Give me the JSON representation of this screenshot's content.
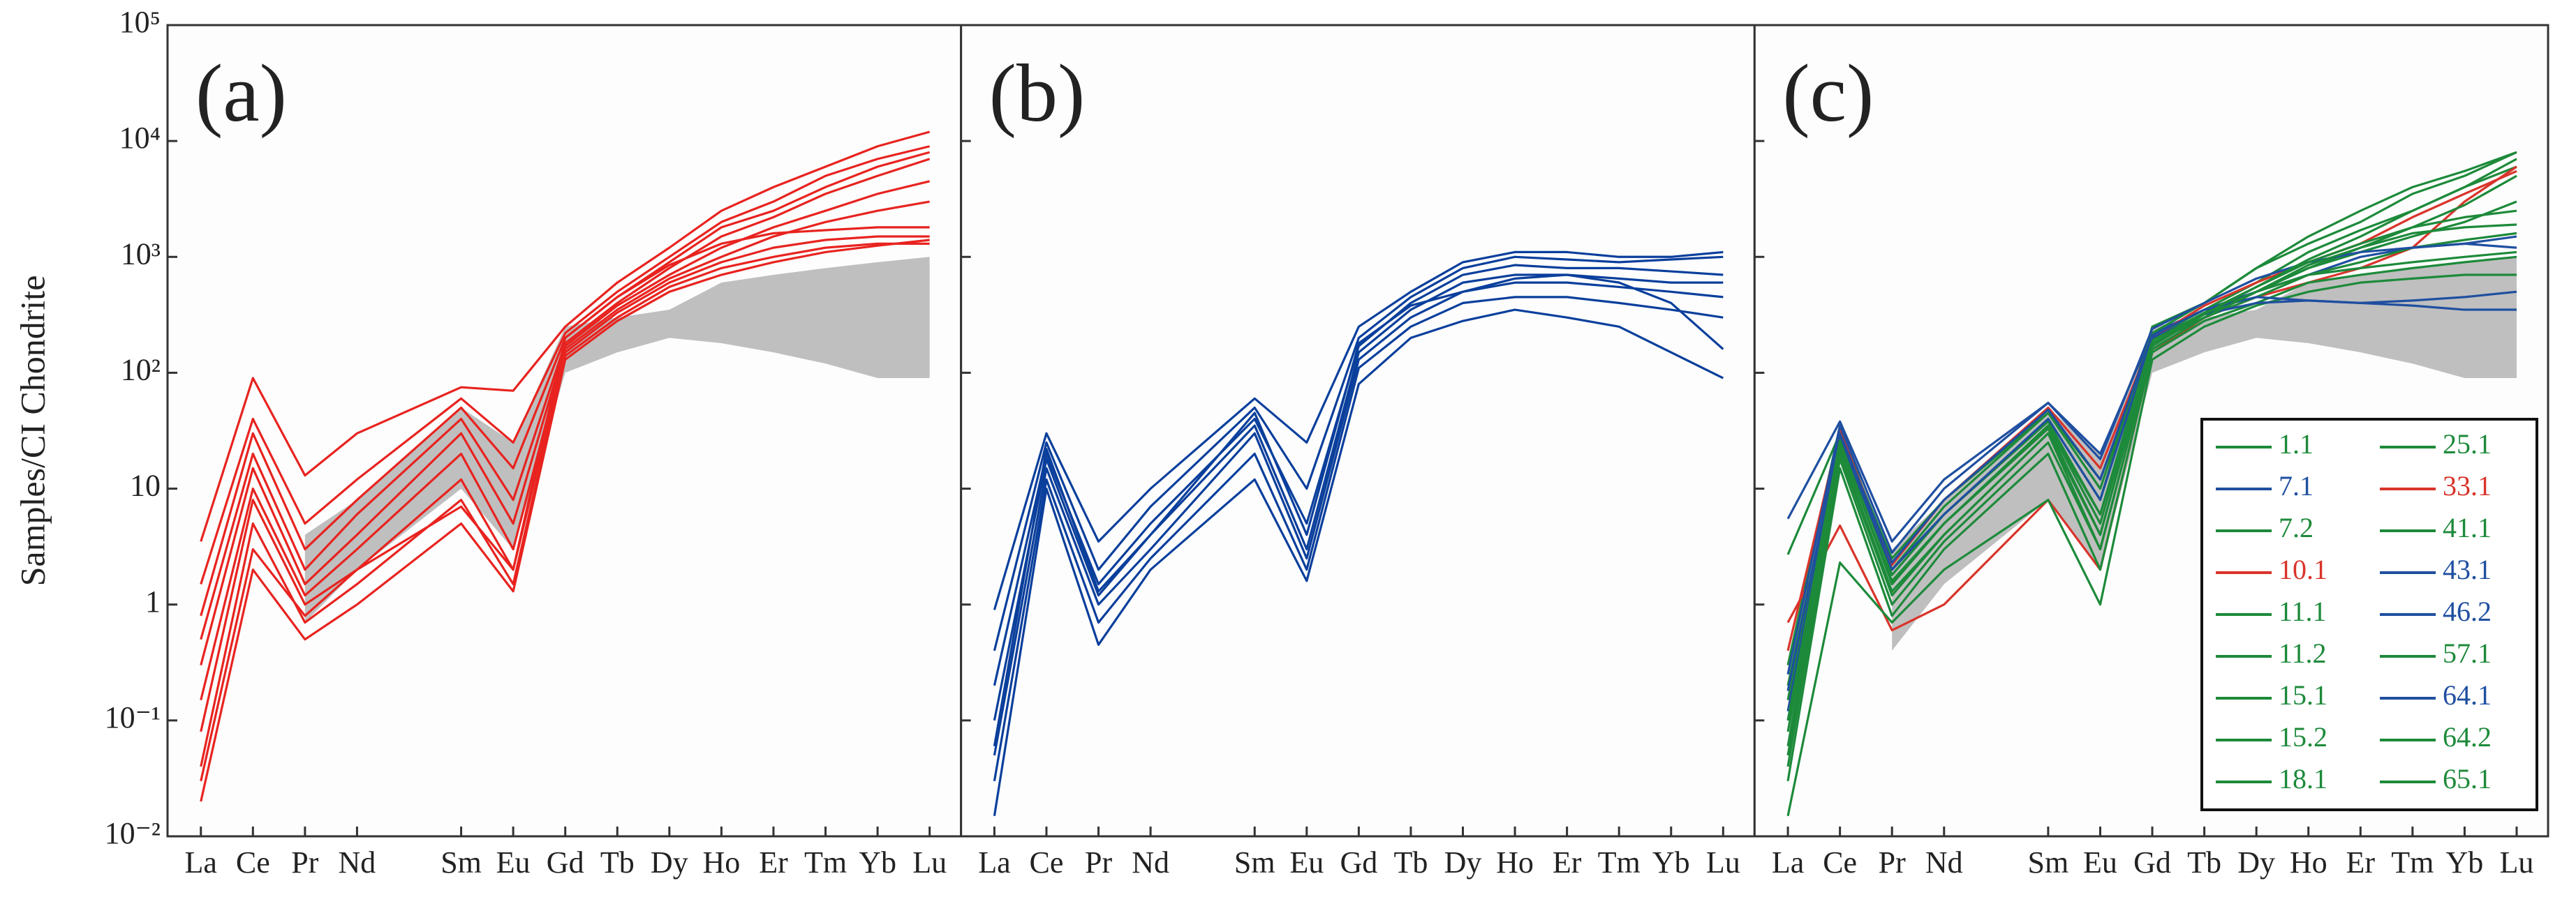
{
  "chart_data": [
    {
      "type": "line",
      "title": "(a)",
      "ylabel": "Samples/CI Chondrite",
      "log_y": true,
      "categories": [
        "La",
        "Ce",
        "Pr",
        "Nd",
        "Sm",
        "Eu",
        "Gd",
        "Tb",
        "Dy",
        "Ho",
        "Er",
        "Tm",
        "Yb",
        "Lu"
      ],
      "ylim": [
        0.01,
        100000
      ],
      "yticks": [
        {
          "value": 0.01,
          "label": "10⁻²"
        },
        {
          "value": 0.1,
          "label": "10⁻¹"
        },
        1,
        10,
        {
          "value": 100,
          "label": "10²"
        },
        {
          "value": 1000,
          "label": "10³"
        },
        {
          "value": 10000,
          "label": "10⁴"
        },
        {
          "value": 100000,
          "label": "10⁵"
        }
      ],
      "field": {
        "color": "#bfbfbf",
        "lower": [
          null,
          null,
          0.7,
          2,
          10,
          3,
          100,
          150,
          200,
          180,
          150,
          120,
          90,
          90
        ],
        "upper": [
          null,
          null,
          4,
          8,
          50,
          25,
          250,
          300,
          350,
          600,
          700,
          800,
          900,
          1000
        ]
      },
      "series": [
        {
          "color": "#e8231f",
          "values": [
            3.5,
            90,
            13,
            30,
            75,
            70,
            250,
            600,
            1200,
            2500,
            4000,
            6000,
            9000,
            12000
          ]
        },
        {
          "color": "#e8231f",
          "values": [
            1.5,
            40,
            5,
            12,
            60,
            25,
            220,
            500,
            1000,
            2000,
            3000,
            5000,
            7000,
            9000
          ]
        },
        {
          "color": "#e8231f",
          "values": [
            0.8,
            30,
            3,
            8,
            50,
            15,
            200,
            450,
            900,
            1800,
            2500,
            4000,
            6000,
            8000
          ]
        },
        {
          "color": "#e8231f",
          "values": [
            0.5,
            20,
            2,
            6,
            40,
            8,
            180,
            400,
            800,
            1500,
            2200,
            3500,
            5000,
            7000
          ]
        },
        {
          "color": "#e8231f",
          "values": [
            0.3,
            15,
            1.5,
            4,
            30,
            5,
            170,
            380,
            700,
            1200,
            1800,
            2500,
            3500,
            4500
          ]
        },
        {
          "color": "#e8231f",
          "values": [
            0.15,
            10,
            1.2,
            3,
            20,
            3,
            160,
            350,
            650,
            1000,
            1500,
            2000,
            2500,
            3000
          ]
        },
        {
          "color": "#e8231f",
          "values": [
            0.08,
            8,
            1,
            2,
            12,
            2,
            150,
            330,
            600,
            900,
            1200,
            1400,
            1500,
            1500
          ]
        },
        {
          "color": "#e8231f",
          "values": [
            0.04,
            5,
            0.7,
            1.5,
            8,
            1.5,
            140,
            300,
            550,
            800,
            1000,
            1200,
            1300,
            1300
          ]
        },
        {
          "color": "#e8231f",
          "values": [
            0.02,
            2,
            0.5,
            1,
            5,
            1.3,
            130,
            280,
            500,
            700,
            900,
            1100,
            1250,
            1400
          ]
        },
        {
          "color": "#e8231f",
          "values": [
            0.03,
            3,
            0.8,
            2,
            7,
            2,
            200,
            450,
            850,
            1300,
            1600,
            1700,
            1800,
            1800
          ]
        }
      ]
    },
    {
      "type": "line",
      "title": "(b)",
      "log_y": true,
      "categories": [
        "La",
        "Ce",
        "Pr",
        "Nd",
        "Sm",
        "Eu",
        "Gd",
        "Tb",
        "Dy",
        "Ho",
        "Er",
        "Tm",
        "Yb",
        "Lu"
      ],
      "ylim": [
        0.01,
        100000
      ],
      "series": [
        {
          "color": "#0a3f9c",
          "values": [
            0.9,
            30,
            3.5,
            10,
            60,
            25,
            250,
            500,
            900,
            1100,
            1100,
            1000,
            1000,
            1100
          ]
        },
        {
          "color": "#0a3f9c",
          "values": [
            0.4,
            25,
            2,
            7,
            50,
            10,
            200,
            450,
            800,
            1000,
            950,
            900,
            950,
            1000
          ]
        },
        {
          "color": "#0a3f9c",
          "values": [
            0.2,
            20,
            1.5,
            5,
            40,
            5,
            170,
            400,
            700,
            850,
            800,
            800,
            750,
            700
          ]
        },
        {
          "color": "#0a3f9c",
          "values": [
            0.1,
            18,
            1.2,
            4,
            35,
            3,
            150,
            350,
            600,
            700,
            700,
            650,
            600,
            600
          ]
        },
        {
          "color": "#0a3f9c",
          "values": [
            0.05,
            15,
            1,
            3,
            30,
            2.5,
            130,
            300,
            500,
            600,
            600,
            550,
            500,
            450
          ]
        },
        {
          "color": "#0a3f9c",
          "values": [
            0.03,
            12,
            0.7,
            2.5,
            20,
            2,
            110,
            250,
            400,
            450,
            450,
            400,
            350,
            300
          ]
        },
        {
          "color": "#0a3f9c",
          "values": [
            0.015,
            10,
            0.45,
            2,
            12,
            1.6,
            80,
            200,
            280,
            350,
            300,
            250,
            150,
            90
          ]
        },
        {
          "color": "#0a3f9c",
          "values": [
            0.06,
            22,
            1.3,
            4,
            45,
            4,
            180,
            380,
            500,
            650,
            700,
            600,
            400,
            160
          ]
        }
      ]
    },
    {
      "type": "line",
      "title": "(c)",
      "log_y": true,
      "legend": "lower right",
      "categories": [
        "La",
        "Ce",
        "Pr",
        "Nd",
        "Sm",
        "Eu",
        "Gd",
        "Tb",
        "Dy",
        "Ho",
        "Er",
        "Tm",
        "Yb",
        "Lu"
      ],
      "ylim": [
        0.01,
        100000
      ],
      "field": {
        "color": "#bfbfbf",
        "lower": [
          null,
          null,
          0.4,
          1.5,
          8,
          2,
          100,
          150,
          200,
          180,
          150,
          120,
          90,
          90
        ],
        "upper": [
          null,
          null,
          3,
          8,
          50,
          20,
          250,
          300,
          350,
          600,
          700,
          800,
          900,
          1000
        ]
      },
      "series": [
        {
          "name": "1.1",
          "color": "#1d8a3a",
          "values": [
            0.3,
            35,
            2,
            6,
            40,
            8,
            250,
            400,
            800,
            1300,
            2000,
            3500,
            5000,
            8000
          ]
        },
        {
          "name": "7.1",
          "color": "#1f4fa0",
          "values": [
            5.5,
            38,
            3.5,
            12,
            55,
            20,
            220,
            350,
            500,
            700,
            1000,
            1200,
            1300,
            1500
          ]
        },
        {
          "name": "7.2",
          "color": "#1d8a3a",
          "values": [
            2.7,
            30,
            2.5,
            8,
            45,
            12,
            200,
            350,
            600,
            1100,
            1700,
            2500,
            4000,
            6000
          ]
        },
        {
          "name": "10.1",
          "color": "#d9342b",
          "values": [
            0.7,
            4.8,
            0.6,
            1,
            8,
            2,
            150,
            300,
            450,
            600,
            800,
            1200,
            3000,
            6000
          ]
        },
        {
          "name": "11.1",
          "color": "#1d8a3a",
          "values": [
            0.1,
            25,
            1.5,
            5,
            35,
            5,
            180,
            300,
            500,
            800,
            1200,
            1800,
            2200,
            2500
          ]
        },
        {
          "name": "11.2",
          "color": "#1d8a3a",
          "values": [
            0.05,
            20,
            1.2,
            4,
            30,
            3,
            160,
            300,
            450,
            700,
            900,
            1200,
            1400,
            1600
          ]
        },
        {
          "name": "15.1",
          "color": "#1d8a3a",
          "values": [
            0.2,
            28,
            1.8,
            6,
            38,
            6,
            200,
            320,
            500,
            700,
            800,
            900,
            1000,
            1100
          ]
        },
        {
          "name": "15.2",
          "color": "#1d8a3a",
          "values": [
            0.03,
            15,
            0.8,
            3,
            20,
            2,
            150,
            280,
            400,
            600,
            700,
            800,
            900,
            1000
          ]
        },
        {
          "name": "18.1",
          "color": "#1d8a3a",
          "values": [
            0.015,
            2.3,
            0.7,
            2,
            8,
            1,
            130,
            250,
            380,
            500,
            600,
            650,
            700,
            700
          ]
        },
        {
          "name": "25.1",
          "color": "#1d8a3a",
          "values": [
            0.15,
            30,
            2,
            7,
            45,
            10,
            220,
            400,
            800,
            1500,
            2500,
            4000,
            5500,
            8000
          ]
        },
        {
          "name": "33.1",
          "color": "#d9342b",
          "values": [
            0.4,
            32,
            2.2,
            8,
            50,
            15,
            200,
            380,
            600,
            900,
            1300,
            2200,
            3500,
            5500
          ]
        },
        {
          "name": "41.1",
          "color": "#1d8a3a",
          "values": [
            0.08,
            22,
            1.3,
            4,
            30,
            4,
            170,
            320,
            500,
            800,
            1100,
            1500,
            2000,
            3000
          ]
        },
        {
          "name": "43.1",
          "color": "#1f4fa0",
          "values": [
            0.25,
            35,
            2.8,
            10,
            55,
            18,
            240,
            400,
            650,
            900,
            1100,
            1200,
            1300,
            1200
          ]
        },
        {
          "name": "46.2",
          "color": "#1f4fa0",
          "values": [
            0.12,
            28,
            2,
            6,
            40,
            8,
            200,
            320,
            400,
            420,
            400,
            380,
            350,
            350
          ]
        },
        {
          "name": "57.1",
          "color": "#1d8a3a",
          "values": [
            0.06,
            24,
            1.6,
            5,
            35,
            6,
            190,
            330,
            550,
            900,
            1300,
            1800,
            2800,
            5000
          ]
        },
        {
          "name": "64.1",
          "color": "#1f4fa0",
          "values": [
            0.18,
            30,
            2.3,
            8,
            48,
            12,
            210,
            350,
            450,
            420,
            400,
            420,
            450,
            500
          ]
        },
        {
          "name": "64.2",
          "color": "#1d8a3a",
          "values": [
            0.1,
            26,
            1.5,
            5,
            33,
            4,
            180,
            320,
            550,
            950,
            1500,
            2500,
            4000,
            7000
          ]
        },
        {
          "name": "65.1",
          "color": "#1d8a3a",
          "values": [
            0.04,
            18,
            1,
            3.5,
            25,
            3,
            160,
            300,
            500,
            850,
            1200,
            1600,
            1800,
            1900
          ]
        }
      ]
    }
  ]
}
